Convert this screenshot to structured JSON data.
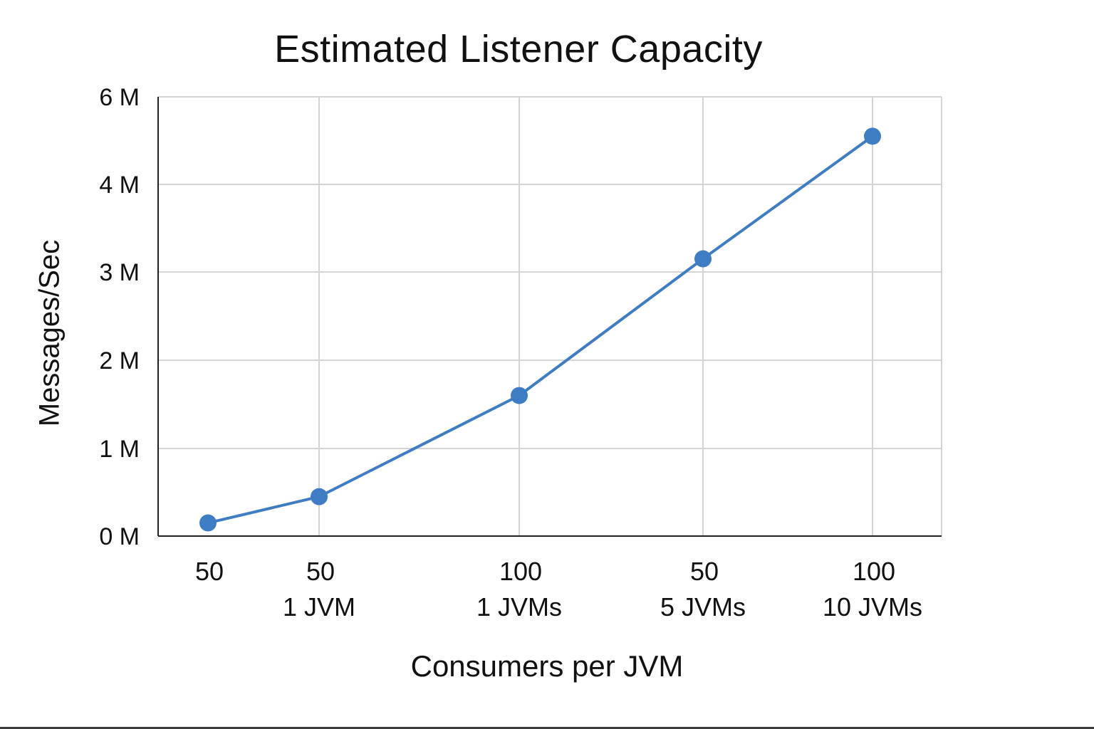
{
  "chart_data": {
    "type": "line",
    "title": "Estimated Listener Capacity",
    "xlabel": "Consumers per JVM",
    "ylabel": "Messages/Sec",
    "categories": [
      [
        "50"
      ],
      [
        "50",
        "1 JVM"
      ],
      [
        "100",
        "1 JVMs"
      ],
      [
        "50",
        "5 JVMs"
      ],
      [
        "100",
        "10 JVMs"
      ]
    ],
    "y_ticks": [
      "0 M",
      "1 M",
      "2 M",
      "3 M",
      "4 M",
      "6 M"
    ],
    "values": [
      0.15,
      0.45,
      1.6,
      3.15,
      4.55
    ],
    "grid": true,
    "legend": "none"
  },
  "colors": {
    "series": "#3e7cc3",
    "grid": "#d4d4d4",
    "axis": "#222222",
    "text": "#111111"
  }
}
